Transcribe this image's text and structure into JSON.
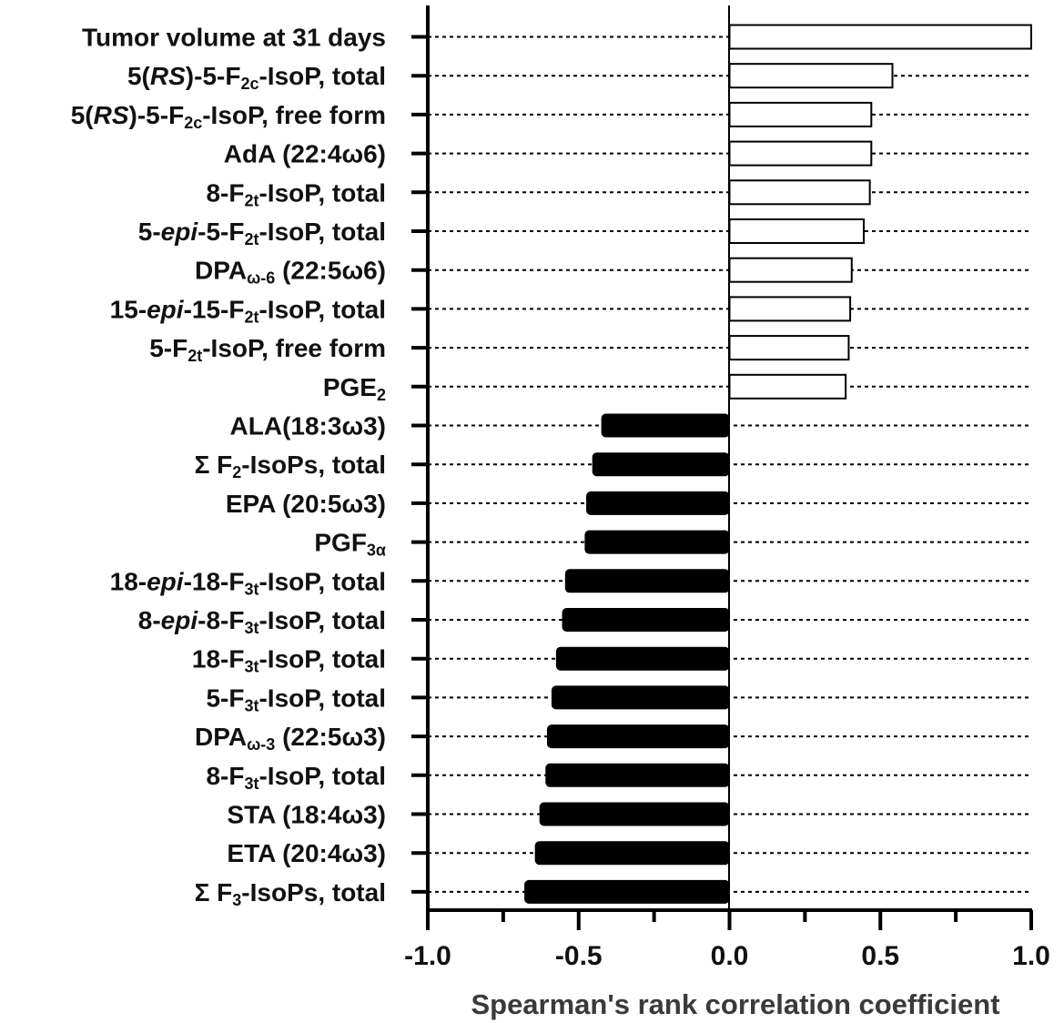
{
  "chart_data": {
    "type": "bar",
    "orientation": "horizontal",
    "xlabel": "Spearman's rank correlation coefficient",
    "xlim": [
      -1.0,
      1.0
    ],
    "xticks": [
      "-1.0",
      "-0.5",
      "0.0",
      "0.5",
      "1.0"
    ],
    "xtick_values": [
      -1.0,
      -0.5,
      0.0,
      0.5,
      1.0
    ],
    "grid": "dotted row guide lines",
    "categories": [
      "Tumor volume at 31 days",
      "5(RS)-5-F2c-IsoP, total",
      "5(RS)-5-F2c-IsoP, free form",
      "AdA (22:4ω6)",
      "8-F2t-IsoP, total",
      "5-epi-5-F2t-IsoP, total",
      "DPAω-6 (22:5ω6)",
      "15-epi-15-F2t-IsoP, total",
      "5-F2t-IsoP, free form",
      "PGE2",
      "ALA(18:3ω3)",
      "Σ F2-IsoPs, total",
      "EPA (20:5ω3)",
      "PGF3α",
      "18-epi-18-F3t-IsoP, total",
      "8-epi-8-F3t-IsoP, total",
      "18-F3t-IsoP, total",
      "5-F3t-IsoP, total",
      "DPAω-3 (22:5ω3)",
      "8-F3t-IsoP, total",
      "STA (18:4ω3)",
      "ETA (20:4ω3)",
      "Σ F3-IsoPs, total"
    ],
    "values": [
      1.0,
      0.54,
      0.47,
      0.47,
      0.465,
      0.445,
      0.405,
      0.4,
      0.395,
      0.385,
      -0.425,
      -0.455,
      -0.475,
      -0.48,
      -0.545,
      -0.555,
      -0.575,
      -0.59,
      -0.605,
      -0.61,
      -0.63,
      -0.645,
      -0.68
    ],
    "colors": {
      "positive": "#ffffff",
      "negative": "#000000",
      "outline": "#000000"
    }
  },
  "labels_rich": [
    [
      {
        "t": "Tumor volume at 31 days"
      }
    ],
    [
      {
        "t": "5("
      },
      {
        "t": "RS",
        "i": true
      },
      {
        "t": ")-5-F"
      },
      {
        "t": "2c",
        "sub": true
      },
      {
        "t": "-IsoP, total"
      }
    ],
    [
      {
        "t": "5("
      },
      {
        "t": "RS",
        "i": true
      },
      {
        "t": ")-5-F"
      },
      {
        "t": "2c",
        "sub": true
      },
      {
        "t": "-IsoP, free form"
      }
    ],
    [
      {
        "t": "AdA (22:4ω6)"
      }
    ],
    [
      {
        "t": "8-F"
      },
      {
        "t": "2t",
        "sub": true
      },
      {
        "t": "-IsoP, total"
      }
    ],
    [
      {
        "t": "5-"
      },
      {
        "t": "epi",
        "i": true
      },
      {
        "t": "-5-F"
      },
      {
        "t": "2t",
        "sub": true
      },
      {
        "t": "-IsoP, total"
      }
    ],
    [
      {
        "t": "DPA"
      },
      {
        "t": "ω-6",
        "sub": true
      },
      {
        "t": " (22:5ω6)"
      }
    ],
    [
      {
        "t": "15-"
      },
      {
        "t": "epi",
        "i": true
      },
      {
        "t": "-15-F"
      },
      {
        "t": "2t",
        "sub": true
      },
      {
        "t": "-IsoP, total"
      }
    ],
    [
      {
        "t": "5-F"
      },
      {
        "t": "2t",
        "sub": true
      },
      {
        "t": "-IsoP, free form"
      }
    ],
    [
      {
        "t": "PGE"
      },
      {
        "t": "2",
        "sub": true
      }
    ],
    [
      {
        "t": "ALA(18:3ω3)"
      }
    ],
    [
      {
        "t": "Σ F"
      },
      {
        "t": "2",
        "sub": true
      },
      {
        "t": "-IsoPs, total"
      }
    ],
    [
      {
        "t": "EPA (20:5ω3)"
      }
    ],
    [
      {
        "t": "PGF"
      },
      {
        "t": "3α",
        "sub": true
      }
    ],
    [
      {
        "t": "18-"
      },
      {
        "t": "epi",
        "i": true
      },
      {
        "t": "-18-F"
      },
      {
        "t": "3t",
        "sub": true
      },
      {
        "t": "-IsoP, total"
      }
    ],
    [
      {
        "t": "8-"
      },
      {
        "t": "epi",
        "i": true
      },
      {
        "t": "-8-F"
      },
      {
        "t": "3t",
        "sub": true
      },
      {
        "t": "-IsoP, total"
      }
    ],
    [
      {
        "t": "18-F"
      },
      {
        "t": "3t",
        "sub": true
      },
      {
        "t": "-IsoP, total"
      }
    ],
    [
      {
        "t": "5-F"
      },
      {
        "t": "3t",
        "sub": true
      },
      {
        "t": "-IsoP, total"
      }
    ],
    [
      {
        "t": "DPA"
      },
      {
        "t": "ω-3",
        "sub": true
      },
      {
        "t": " (22:5ω3)"
      }
    ],
    [
      {
        "t": "8-F"
      },
      {
        "t": "3t",
        "sub": true
      },
      {
        "t": "-IsoP, total"
      }
    ],
    [
      {
        "t": "STA (18:4ω3)"
      }
    ],
    [
      {
        "t": "ETA (20:4ω3)"
      }
    ],
    [
      {
        "t": "Σ F"
      },
      {
        "t": "3",
        "sub": true
      },
      {
        "t": "-IsoPs, total"
      }
    ]
  ]
}
